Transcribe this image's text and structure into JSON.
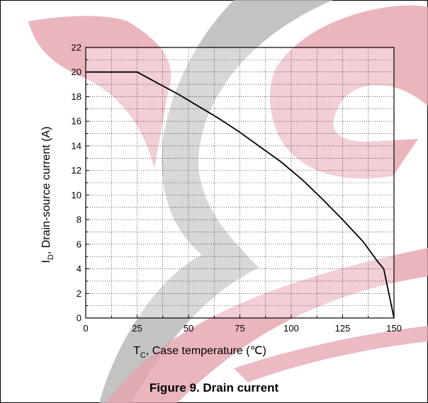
{
  "figure": {
    "caption": "Figure 9. Drain current"
  },
  "watermark": {
    "colors": [
      "#e6a3ad",
      "#b8b8b8"
    ]
  },
  "chart_data": {
    "type": "line",
    "title": "",
    "xlabel_main": "T",
    "xlabel_sub": "C",
    "xlabel_rest": ", Case temperature (℃)",
    "ylabel_main": "I",
    "ylabel_sub": "D",
    "ylabel_rest": ", Drain-source current (A)",
    "xlim": [
      0,
      150
    ],
    "ylim": [
      0,
      22
    ],
    "xticks": [
      0,
      25,
      50,
      75,
      100,
      125,
      150
    ],
    "yticks": [
      0,
      2,
      4,
      6,
      8,
      10,
      12,
      14,
      16,
      18,
      20,
      22
    ],
    "grid": true,
    "series": [
      {
        "color": "#000000",
        "points": [
          [
            0,
            20
          ],
          [
            25,
            20
          ],
          [
            35,
            19.1
          ],
          [
            45,
            18.2
          ],
          [
            55,
            17.2
          ],
          [
            65,
            16.2
          ],
          [
            75,
            15.1
          ],
          [
            85,
            13.9
          ],
          [
            95,
            12.7
          ],
          [
            105,
            11.3
          ],
          [
            115,
            9.7
          ],
          [
            125,
            8.0
          ],
          [
            135,
            6.2
          ],
          [
            142,
            4.6
          ],
          [
            145,
            4.0
          ],
          [
            150,
            0
          ]
        ]
      }
    ]
  }
}
